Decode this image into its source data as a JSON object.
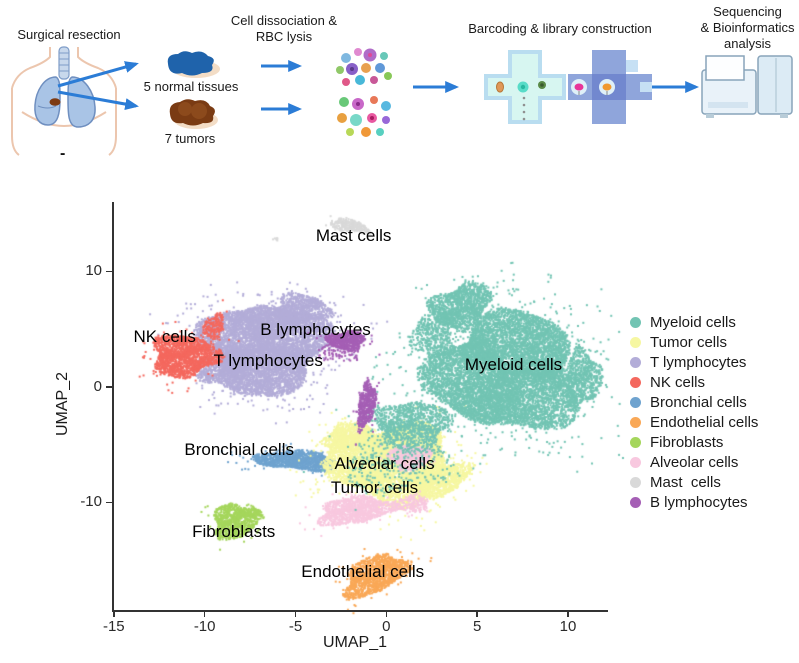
{
  "workflow": {
    "surgical_resection": "Surgical resection",
    "dissociation_line1": "Cell dissociation &",
    "dissociation_line2": "RBC lysis",
    "normal_tissues": "5 normal tissues",
    "tumors": "7 tumors",
    "barcoding": "Barcoding & library construction",
    "sequencing_line1": "Sequencing",
    "sequencing_line2": "& Bioinformatics",
    "sequencing_line3": "analysis",
    "dash": "-",
    "arrow_color": "#2b7cd6"
  },
  "chart_data": {
    "type": "scatter",
    "title": "",
    "xlabel": "UMAP_1",
    "ylabel": "UMAP_2",
    "xlim": [
      -15.1,
      12.2
    ],
    "ylim": [
      -19.4,
      16.0
    ],
    "x_ticks": [
      -15,
      -10,
      -5,
      0,
      5,
      10
    ],
    "y_ticks": [
      10,
      0,
      -10
    ],
    "grid": false,
    "legend_position": "right",
    "legend": [
      {
        "label": "Myeloid cells",
        "color": "#72c4b3"
      },
      {
        "label": "Tumor cells",
        "color": "#f6f7a2"
      },
      {
        "label": "T lymphocytes",
        "color": "#b3add8"
      },
      {
        "label": "NK cells",
        "color": "#f4685e"
      },
      {
        "label": "Bronchial cells",
        "color": "#6fa3cf"
      },
      {
        "label": "Endothelial cells",
        "color": "#f9a857"
      },
      {
        "label": "Fibroblasts",
        "color": "#a5d65c"
      },
      {
        "label": "Alveolar cells",
        "color": "#f8c8df"
      },
      {
        "label": "Mast  cells",
        "color": "#d9d9d9"
      },
      {
        "label": "B lymphocytes",
        "color": "#a55fb5"
      }
    ],
    "clusters": [
      {
        "name": "T lymphocytes",
        "color": "#b3add8",
        "label": {
          "text": "T lymphocytes",
          "x": -6.5,
          "y": 2.2
        },
        "lobes": [
          {
            "cx": -6.7,
            "cy": 3.4,
            "rx": 3.3,
            "ry": 3.9,
            "rot": 0,
            "n": 7500
          },
          {
            "cx": -4.7,
            "cy": 6.7,
            "rx": 1.5,
            "ry": 1.3,
            "rot": 0,
            "n": 800
          },
          {
            "cx": -9.0,
            "cy": 1.6,
            "rx": 1.4,
            "ry": 1.7,
            "rot": 0,
            "n": 800
          }
        ]
      },
      {
        "name": "NK cells",
        "color": "#f4685e",
        "label": {
          "text": "NK cells",
          "x": -12.2,
          "y": 4.3
        },
        "lobes": [
          {
            "cx": -11.1,
            "cy": 2.7,
            "rx": 1.8,
            "ry": 1.8,
            "rot": 0,
            "n": 1700
          },
          {
            "cx": -9.5,
            "cy": 5.2,
            "rx": 0.5,
            "ry": 1.2,
            "rot": -25,
            "n": 170
          }
        ]
      },
      {
        "name": "Mast cells",
        "color": "#d9d9d9",
        "label": {
          "text": "Mast cells",
          "x": -1.8,
          "y": 13.1
        },
        "lobes": [
          {
            "cx": -2.0,
            "cy": 13.9,
            "rx": 1.05,
            "ry": 0.55,
            "rot": -12,
            "n": 300
          },
          {
            "cx": -6.1,
            "cy": 12.8,
            "rx": 0.15,
            "ry": 0.15,
            "rot": 0,
            "n": 8
          }
        ]
      },
      {
        "name": "Bronchial cells",
        "color": "#6fa3cf",
        "label": {
          "text": "Bronchial cells",
          "x": -8.1,
          "y": -5.5
        },
        "lobes": [
          {
            "cx": -4.9,
            "cy": -6.4,
            "rx": 2.35,
            "ry": 0.8,
            "rot": -4,
            "n": 1300
          }
        ]
      },
      {
        "name": "Tumor cells",
        "color": "#f6f7a2",
        "label": {
          "text": "Tumor cells",
          "x": -0.65,
          "y": -8.75
        },
        "lobes": [
          {
            "cx": 0.2,
            "cy": -6.6,
            "rx": 3.3,
            "ry": 3.3,
            "rot": 0,
            "n": 5500
          },
          {
            "cx": 2.9,
            "cy": -8.0,
            "rx": 1.8,
            "ry": 1.4,
            "rot": 15,
            "n": 1100
          },
          {
            "cx": -1.9,
            "cy": -4.4,
            "rx": 1.5,
            "ry": 1.2,
            "rot": 0,
            "n": 900
          }
        ]
      },
      {
        "name": "Alveolar cells",
        "color": "#f8c8df",
        "label": {
          "text": "Alveolar cells",
          "x": -0.1,
          "y": -6.7
        },
        "lobes": [
          {
            "cx": 1.3,
            "cy": -6.1,
            "rx": 1.15,
            "ry": 1.05,
            "rot": 0,
            "n": 650
          },
          {
            "cx": -1.7,
            "cy": -10.7,
            "rx": 2.1,
            "ry": 1.15,
            "rot": 8,
            "n": 1150
          },
          {
            "cx": 1.5,
            "cy": -10.1,
            "rx": 0.9,
            "ry": 0.8,
            "rot": 0,
            "n": 180
          }
        ]
      },
      {
        "name": "Fibroblasts",
        "color": "#a5d65c",
        "label": {
          "text": "Fibroblasts",
          "x": -8.4,
          "y": -12.6
        },
        "lobes": [
          {
            "cx": -8.4,
            "cy": -11.7,
            "rx": 1.15,
            "ry": 1.5,
            "rot": 0,
            "n": 800
          },
          {
            "cx": -7.4,
            "cy": -10.9,
            "rx": 0.7,
            "ry": 0.45,
            "rot": -20,
            "n": 150
          }
        ]
      },
      {
        "name": "Endothelial cells",
        "color": "#f9a857",
        "label": {
          "text": "Endothelial cells",
          "x": -1.3,
          "y": -16.0
        },
        "lobes": [
          {
            "cx": -0.6,
            "cy": -16.3,
            "rx": 1.85,
            "ry": 1.5,
            "rot": 25,
            "n": 1300
          }
        ]
      },
      {
        "name": "Myeloid cells",
        "color": "#72c4b3",
        "label": {
          "text": "Myeloid cells",
          "x": 7.0,
          "y": 1.9
        },
        "lobes": [
          {
            "cx": 6.6,
            "cy": 1.2,
            "rx": 4.0,
            "ry": 5.0,
            "rot": 0,
            "n": 9000
          },
          {
            "cx": 4.1,
            "cy": 6.9,
            "rx": 1.7,
            "ry": 1.9,
            "rot": 20,
            "n": 1300
          },
          {
            "cx": 10.8,
            "cy": 0.8,
            "rx": 1.0,
            "ry": 2.4,
            "rot": 0,
            "n": 700
          },
          {
            "cx": 2.6,
            "cy": 4.4,
            "rx": 1.2,
            "ry": 2.0,
            "rot": 0,
            "n": 450
          },
          {
            "cx": 1.4,
            "cy": -3.3,
            "rx": 2.1,
            "ry": 2.1,
            "rot": 0,
            "n": 1100
          },
          {
            "cx": 0.6,
            "cy": -6.6,
            "rx": 3.0,
            "ry": 2.6,
            "rot": 0,
            "n": 330
          }
        ]
      },
      {
        "name": "B lymphocytes",
        "color": "#a55fb5",
        "label": {
          "text": "B lymphocytes",
          "x": -3.9,
          "y": 4.9
        },
        "lobes": [
          {
            "cx": -2.2,
            "cy": 4.0,
            "rx": 1.05,
            "ry": 0.8,
            "rot": 0,
            "n": 650
          },
          {
            "cx": -1.1,
            "cy": -1.6,
            "rx": 0.45,
            "ry": 2.1,
            "rot": -10,
            "n": 520
          },
          {
            "cx": -2.7,
            "cy": 2.9,
            "rx": 1.3,
            "ry": 0.9,
            "rot": 0,
            "n": 80
          }
        ]
      }
    ]
  }
}
